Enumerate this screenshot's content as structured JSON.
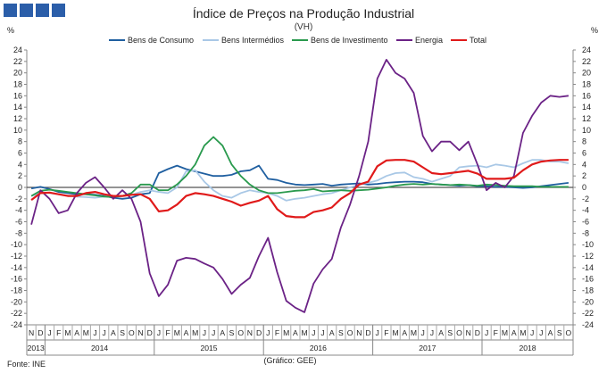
{
  "colors": {
    "logo": "#2b5ea9",
    "bens_consumo": "#1f5fa0",
    "bens_intermedios": "#a9c8e6",
    "bens_investimento": "#2a9a4e",
    "energia": "#6b2286",
    "total": "#e01a1a"
  },
  "logo_icon": "three-blue-squares",
  "chart_data": {
    "type": "line",
    "title": "Índice de Preços na Produção Industrial",
    "subtitle": "(VH)",
    "ylabel_left": "%",
    "ylabel_right": "%",
    "ylim": [
      -24,
      24
    ],
    "yticks": [
      -24,
      -22,
      -20,
      -18,
      -16,
      -14,
      -12,
      -10,
      -8,
      -6,
      -4,
      -2,
      0,
      2,
      4,
      6,
      8,
      10,
      12,
      14,
      16,
      18,
      20,
      22,
      24
    ],
    "months": [
      "N",
      "D",
      "J",
      "F",
      "M",
      "A",
      "M",
      "J",
      "J",
      "A",
      "S",
      "O",
      "N",
      "D",
      "J",
      "F",
      "M",
      "A",
      "M",
      "J",
      "J",
      "A",
      "S",
      "O",
      "N",
      "D",
      "J",
      "F",
      "M",
      "A",
      "M",
      "J",
      "J",
      "A",
      "S",
      "O",
      "N",
      "D",
      "J",
      "F",
      "M",
      "A",
      "M",
      "J",
      "J",
      "A",
      "S",
      "O",
      "N",
      "D",
      "J",
      "F",
      "M",
      "A",
      "M",
      "J",
      "J",
      "A",
      "S",
      "O"
    ],
    "years": [
      {
        "label": "2013",
        "start": 0,
        "end": 1
      },
      {
        "label": "2014",
        "start": 2,
        "end": 13
      },
      {
        "label": "2015",
        "start": 14,
        "end": 25
      },
      {
        "label": "2016",
        "start": 26,
        "end": 37
      },
      {
        "label": "2017",
        "start": 38,
        "end": 49
      },
      {
        "label": "2018",
        "start": 50,
        "end": 59
      }
    ],
    "series": [
      {
        "name": "Bens de Consumo",
        "color_key": "bens_consumo",
        "values": [
          -0.2,
          0.1,
          -0.3,
          -0.8,
          -1.0,
          -1.2,
          -1.2,
          -1.3,
          -1.5,
          -1.8,
          -2.0,
          -1.8,
          -1.2,
          -1.0,
          2.5,
          3.2,
          3.8,
          3.2,
          2.8,
          2.4,
          2.0,
          2.0,
          2.2,
          2.8,
          3.0,
          3.8,
          1.5,
          1.3,
          0.8,
          0.5,
          0.4,
          0.5,
          0.6,
          0.3,
          0.5,
          0.6,
          0.7,
          0.5,
          0.6,
          0.8,
          0.9,
          1.0,
          1.0,
          0.9,
          0.6,
          0.5,
          0.4,
          0.3,
          0.4,
          0.2,
          0.2,
          0.1,
          0.1,
          0.0,
          -0.1,
          0.0,
          0.2,
          0.4,
          0.6,
          0.8
        ]
      },
      {
        "name": "Bens Intermédios",
        "color_key": "bens_intermedios",
        "values": [
          -1.5,
          -1.0,
          -1.0,
          -1.2,
          -1.4,
          -1.6,
          -1.7,
          -1.8,
          -1.6,
          -1.5,
          -1.5,
          -1.3,
          -0.8,
          -0.5,
          -0.8,
          -1.0,
          0.0,
          2.8,
          3.0,
          1.0,
          -0.5,
          -1.5,
          -1.8,
          -1.0,
          -0.5,
          -0.8,
          -1.0,
          -1.5,
          -2.3,
          -2.0,
          -1.8,
          -1.5,
          -1.2,
          -1.0,
          -0.5,
          0.0,
          0.5,
          0.8,
          1.2,
          2.0,
          2.5,
          2.6,
          1.8,
          1.5,
          1.0,
          1.5,
          2.0,
          3.5,
          3.7,
          3.8,
          3.5,
          4.0,
          3.8,
          3.5,
          4.2,
          4.8,
          4.8,
          4.5,
          4.5,
          4.2
        ]
      },
      {
        "name": "Bens de Investimento",
        "color_key": "bens_investimento",
        "values": [
          -1.5,
          -0.6,
          -0.4,
          -0.6,
          -0.8,
          -1.0,
          -1.2,
          -1.4,
          -1.6,
          -1.7,
          -1.5,
          -1.0,
          0.5,
          0.5,
          -0.5,
          -0.5,
          0.5,
          2.0,
          4.0,
          7.3,
          8.8,
          7.3,
          4.0,
          2.0,
          0.5,
          -0.5,
          -1.0,
          -1.0,
          -0.8,
          -0.6,
          -0.5,
          -0.3,
          -0.7,
          -0.6,
          -0.5,
          -0.6,
          -0.5,
          -0.4,
          -0.2,
          0.0,
          0.3,
          0.5,
          0.6,
          0.5,
          0.6,
          0.5,
          0.4,
          0.5,
          0.4,
          0.3,
          0.5,
          0.4,
          0.3,
          0.2,
          0.2,
          0.2,
          0.1,
          0.1,
          0.1,
          0.1
        ]
      },
      {
        "name": "Energia",
        "color_key": "energia",
        "values": [
          -6.5,
          -0.5,
          -2.0,
          -4.5,
          -4.0,
          -1.0,
          0.8,
          1.8,
          0.0,
          -2.0,
          -0.5,
          -2.0,
          -6.0,
          -15.0,
          -19.0,
          -17.0,
          -12.8,
          -12.3,
          -12.5,
          -13.3,
          -14.0,
          -16.0,
          -18.6,
          -17.0,
          -15.8,
          -12.0,
          -8.8,
          -14.8,
          -19.8,
          -21.0,
          -21.8,
          -16.8,
          -14.3,
          -12.5,
          -7.0,
          -3.0,
          2.0,
          8.0,
          19.0,
          22.3,
          20.0,
          19.0,
          16.5,
          9.0,
          6.3,
          8.0,
          8.0,
          6.5,
          8.0,
          4.0,
          -0.5,
          0.8,
          0.0,
          2.0,
          9.5,
          12.5,
          14.8,
          16.0,
          15.8,
          16.0
        ]
      },
      {
        "name": "Total",
        "color_key": "total",
        "values": [
          -2.2,
          -1.0,
          -0.9,
          -1.2,
          -1.5,
          -1.5,
          -1.0,
          -0.8,
          -1.2,
          -1.5,
          -1.5,
          -1.3,
          -1.2,
          -2.0,
          -4.2,
          -4.0,
          -3.0,
          -1.5,
          -1.0,
          -1.2,
          -1.5,
          -2.0,
          -2.5,
          -3.2,
          -2.7,
          -2.3,
          -1.5,
          -3.8,
          -5.0,
          -5.2,
          -5.2,
          -4.3,
          -4.0,
          -3.5,
          -2.0,
          -1.0,
          0.5,
          1.0,
          3.7,
          4.7,
          4.8,
          4.8,
          4.5,
          3.5,
          2.5,
          2.3,
          2.5,
          2.7,
          2.9,
          2.4,
          1.5,
          1.5,
          1.5,
          1.7,
          3.0,
          4.0,
          4.5,
          4.7,
          4.8,
          4.8
        ]
      }
    ],
    "source_label": "Fonte: INE",
    "credit_label": "(Gráfico: GEE)"
  }
}
